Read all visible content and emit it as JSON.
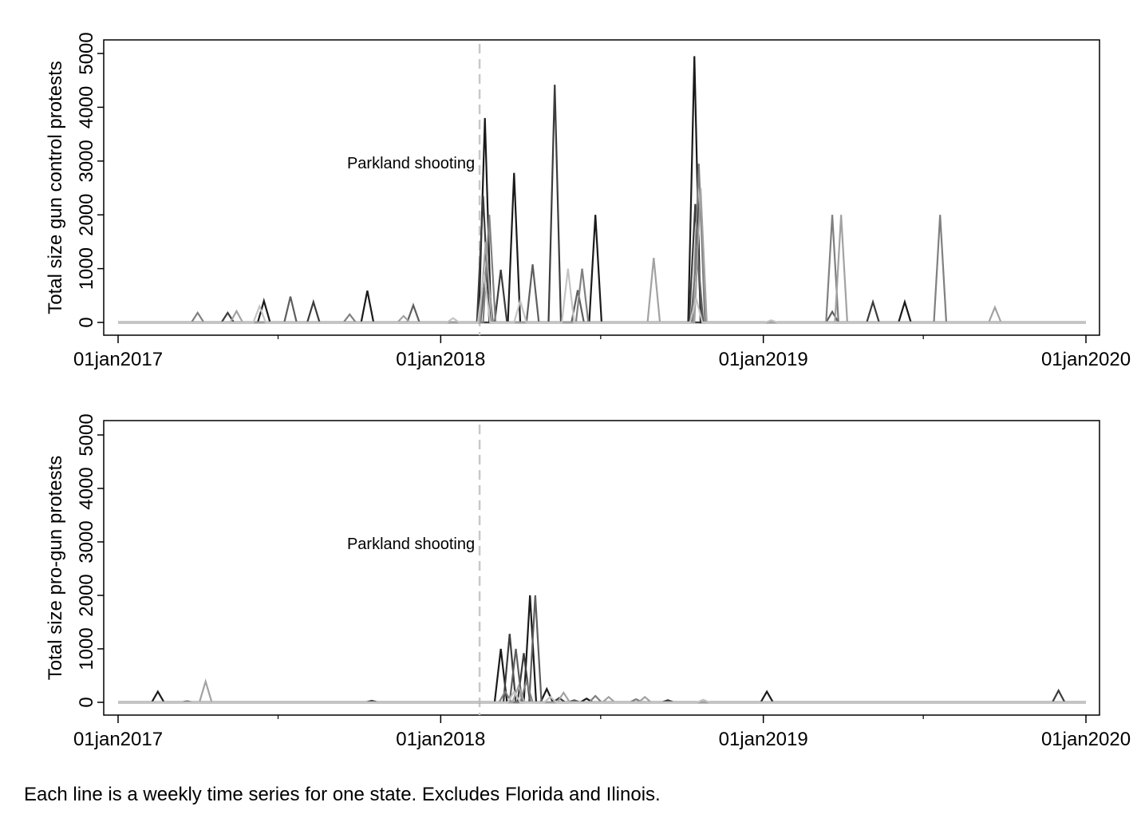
{
  "caption": "Each line is a weekly time series for one state. Excludes Florida and Ilinois.",
  "colors": {
    "series_palette": [
      "#1a1a1a",
      "#3c3c3c",
      "#5e5e5e",
      "#808080",
      "#a2a2a2",
      "#c4c4c4"
    ],
    "event_line": "#c8c8c8",
    "axis": "#000000"
  },
  "chart_data": [
    {
      "type": "line",
      "ylabel": "Total size gun control protests",
      "xlim": [
        "2017-01-01",
        "2020-01-01"
      ],
      "ylim": [
        0,
        5000
      ],
      "yticks": [
        0,
        1000,
        2000,
        3000,
        4000,
        5000
      ],
      "xticks": [
        {
          "date": "2017-01-01",
          "label": "01jan2017"
        },
        {
          "date": "2018-01-01",
          "label": "01jan2018"
        },
        {
          "date": "2019-01-01",
          "label": "01jan2019"
        },
        {
          "date": "2020-01-01",
          "label": "01jan2020"
        }
      ],
      "minor_xticks": [
        "2017-07-01",
        "2018-07-01",
        "2019-07-01"
      ],
      "grid": false,
      "event": {
        "date": "2018-02-14",
        "label": "Parkland shooting"
      },
      "series": [
        {
          "points": [
            [
              "2017-06-15",
              400
            ],
            [
              "2017-10-10",
              590
            ],
            [
              "2018-02-20",
              3800
            ],
            [
              "2018-03-25",
              2780
            ],
            [
              "2018-06-25",
              2000
            ],
            [
              "2018-10-15",
              4950
            ],
            [
              "2019-06-10",
              380
            ]
          ]
        },
        {
          "points": [
            [
              "2017-05-05",
              180
            ],
            [
              "2017-08-10",
              380
            ],
            [
              "2018-02-18",
              2350
            ],
            [
              "2018-03-10",
              980
            ],
            [
              "2018-05-10",
              4420
            ],
            [
              "2018-10-16",
              2200
            ],
            [
              "2019-05-05",
              380
            ]
          ]
        },
        {
          "points": [
            [
              "2017-07-15",
              480
            ],
            [
              "2017-12-01",
              320
            ],
            [
              "2018-02-22",
              1100
            ],
            [
              "2018-04-15",
              1080
            ],
            [
              "2018-06-05",
              600
            ],
            [
              "2018-10-18",
              1400
            ],
            [
              "2019-03-20",
              200
            ]
          ]
        },
        {
          "points": [
            [
              "2017-04-01",
              180
            ],
            [
              "2017-09-20",
              150
            ],
            [
              "2018-02-25",
              2000
            ],
            [
              "2018-06-10",
              1000
            ],
            [
              "2018-10-20",
              2950
            ],
            [
              "2019-03-20",
              2000
            ],
            [
              "2019-07-20",
              2000
            ]
          ]
        },
        {
          "points": [
            [
              "2017-05-15",
              210
            ],
            [
              "2017-11-20",
              120
            ],
            [
              "2018-02-21",
              1500
            ],
            [
              "2018-08-30",
              1200
            ],
            [
              "2018-10-22",
              2500
            ],
            [
              "2019-03-30",
              2000
            ],
            [
              "2019-09-20",
              280
            ]
          ]
        },
        {
          "points": [
            [
              "2017-06-10",
              300
            ],
            [
              "2018-01-15",
              80
            ],
            [
              "2018-02-19",
              900
            ],
            [
              "2018-04-01",
              400
            ],
            [
              "2018-05-25",
              1000
            ],
            [
              "2018-10-17",
              450
            ],
            [
              "2019-01-10",
              40
            ]
          ]
        }
      ]
    },
    {
      "type": "line",
      "ylabel": "Total size pro-gun protests",
      "xlim": [
        "2017-01-01",
        "2020-01-01"
      ],
      "ylim": [
        0,
        5000
      ],
      "yticks": [
        0,
        1000,
        2000,
        3000,
        4000,
        5000
      ],
      "xticks": [
        {
          "date": "2017-01-01",
          "label": "01jan2017"
        },
        {
          "date": "2018-01-01",
          "label": "01jan2018"
        },
        {
          "date": "2019-01-01",
          "label": "01jan2019"
        },
        {
          "date": "2020-01-01",
          "label": "01jan2020"
        }
      ],
      "minor_xticks": [
        "2017-07-01",
        "2018-07-01",
        "2019-07-01"
      ],
      "grid": false,
      "event": {
        "date": "2018-02-14",
        "label": "Parkland shooting"
      },
      "series": [
        {
          "points": [
            [
              "2017-02-15",
              200
            ],
            [
              "2018-03-10",
              1000
            ],
            [
              "2018-04-12",
              2000
            ],
            [
              "2018-05-01",
              250
            ],
            [
              "2018-06-15",
              70
            ],
            [
              "2019-01-05",
              200
            ]
          ]
        },
        {
          "points": [
            [
              "2017-10-15",
              30
            ],
            [
              "2018-03-20",
              1280
            ],
            [
              "2018-04-05",
              920
            ],
            [
              "2018-05-15",
              80
            ],
            [
              "2018-09-15",
              40
            ],
            [
              "2019-12-01",
              220
            ]
          ]
        },
        {
          "points": [
            [
              "2017-03-20",
              20
            ],
            [
              "2018-03-27",
              1000
            ],
            [
              "2018-04-18",
              2000
            ],
            [
              "2018-06-01",
              40
            ]
          ]
        },
        {
          "points": [
            [
              "2018-03-15",
              200
            ],
            [
              "2018-04-08",
              400
            ],
            [
              "2018-06-25",
              120
            ],
            [
              "2018-08-10",
              60
            ]
          ]
        },
        {
          "points": [
            [
              "2017-04-10",
              390
            ],
            [
              "2018-03-30",
              300
            ],
            [
              "2018-05-20",
              180
            ],
            [
              "2018-07-10",
              100
            ],
            [
              "2018-08-20",
              100
            ]
          ]
        },
        {
          "points": [
            [
              "2018-03-25",
              200
            ],
            [
              "2018-05-05",
              100
            ],
            [
              "2018-10-25",
              50
            ]
          ]
        }
      ]
    }
  ]
}
